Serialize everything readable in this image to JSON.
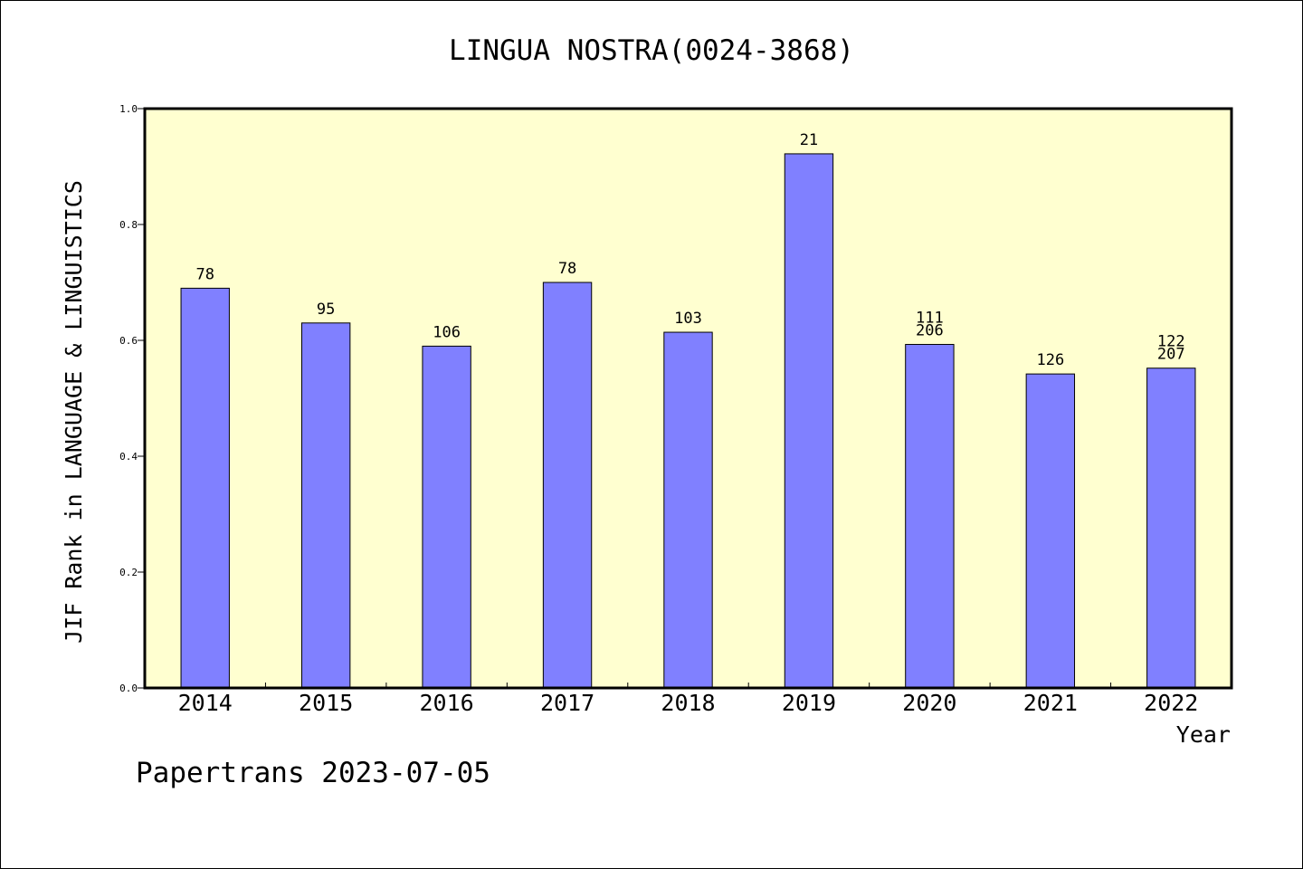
{
  "chart_data": {
    "type": "bar",
    "title": "LINGUA NOSTRA(0024-3868)",
    "xlabel": "Year",
    "ylabel": "JIF Rank in LANGUAGE & LINGUISTICS",
    "ylim": [
      0,
      1.0
    ],
    "yticks": [
      0.0,
      0.2,
      0.4,
      0.6,
      0.8,
      1.0
    ],
    "ytick_labels": [
      "0.0",
      "0.2",
      "0.4",
      "0.6",
      "0.8",
      "1.0"
    ],
    "grid": false,
    "categories": [
      "2014",
      "2015",
      "2016",
      "2017",
      "2018",
      "2019",
      "2020",
      "2021",
      "2022"
    ],
    "values": [
      0.69,
      0.63,
      0.59,
      0.7,
      0.614,
      0.922,
      0.593,
      0.542,
      0.552
    ],
    "labels": [
      [
        "78"
      ],
      [
        "95"
      ],
      [
        "106"
      ],
      [
        "78"
      ],
      [
        "103"
      ],
      [
        "21"
      ],
      [
        "111",
        "206"
      ],
      [
        "126"
      ],
      [
        "122",
        "207"
      ]
    ],
    "colors": {
      "plot_background": "#ffffd0",
      "bar_fill": "#8080ff",
      "bar_stroke": "#000000",
      "axis": "#000000"
    }
  },
  "footer": {
    "credit": "Papertrans 2023-07-05"
  }
}
